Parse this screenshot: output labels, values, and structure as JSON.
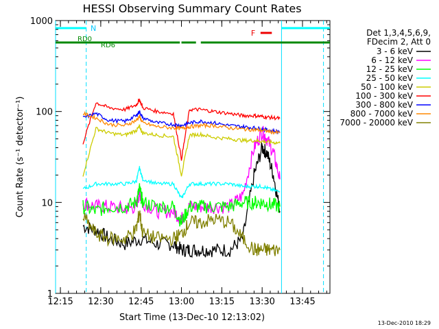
{
  "chart_data": {
    "type": "line",
    "title": "HESSI Observing Summary Count Rates",
    "xlabel": "Start Time (13-Dec-10 12:13:02)",
    "ylabel": "Count Rate (s⁻¹ detector⁻¹)",
    "y_scale": "log",
    "ylim": [
      1,
      1000
    ],
    "xlim_minutes": [
      12.22,
      13.92
    ],
    "x_ticks": [
      "12:15",
      "12:30",
      "12:45",
      "13:00",
      "13:15",
      "13:30",
      "13:45"
    ],
    "x_tick_values": [
      12.25,
      12.5,
      12.75,
      13.0,
      13.25,
      13.5,
      13.75
    ],
    "y_ticks": [
      "1",
      "10",
      "100",
      "1000"
    ],
    "y_tick_values": [
      1,
      10,
      100,
      1000
    ],
    "grid": false,
    "legend_placement": "right",
    "legend_header": [
      "Det 1,3,4,5,6,9,",
      "FDecim 2, Att 0"
    ],
    "series": [
      {
        "name": "3 - 6 keV",
        "color": "#000000",
        "points": [
          [
            12.39,
            5.5
          ],
          [
            12.47,
            5
          ],
          [
            12.55,
            4
          ],
          [
            12.65,
            3.5
          ],
          [
            12.75,
            4
          ],
          [
            12.85,
            3.5
          ],
          [
            12.95,
            3.5
          ],
          [
            13.0,
            3
          ],
          [
            13.05,
            3
          ],
          [
            13.12,
            3
          ],
          [
            13.2,
            3
          ],
          [
            13.3,
            3
          ],
          [
            13.38,
            4
          ],
          [
            13.45,
            20
          ],
          [
            13.5,
            40
          ],
          [
            13.53,
            35
          ],
          [
            13.57,
            20
          ],
          [
            13.61,
            8
          ]
        ]
      },
      {
        "name": "6 - 12 keV",
        "color": "#ff00ff",
        "points": [
          [
            12.39,
            10
          ],
          [
            12.47,
            9
          ],
          [
            12.55,
            9
          ],
          [
            12.65,
            8.5
          ],
          [
            12.72,
            9
          ],
          [
            12.74,
            13
          ],
          [
            12.76,
            10
          ],
          [
            12.85,
            8
          ],
          [
            12.95,
            8
          ],
          [
            13.0,
            6.5
          ],
          [
            13.05,
            9
          ],
          [
            13.12,
            9
          ],
          [
            13.2,
            9
          ],
          [
            13.3,
            9
          ],
          [
            13.38,
            12
          ],
          [
            13.45,
            40
          ],
          [
            13.5,
            60
          ],
          [
            13.53,
            50
          ],
          [
            13.57,
            35
          ],
          [
            13.61,
            18
          ]
        ]
      },
      {
        "name": "12 - 25 keV",
        "color": "#00ff00",
        "points": [
          [
            12.39,
            9
          ],
          [
            12.47,
            8
          ],
          [
            12.55,
            9
          ],
          [
            12.65,
            9
          ],
          [
            12.72,
            10
          ],
          [
            12.74,
            14
          ],
          [
            12.76,
            10
          ],
          [
            12.85,
            9
          ],
          [
            12.95,
            9
          ],
          [
            13.0,
            6
          ],
          [
            13.05,
            9
          ],
          [
            13.12,
            9
          ],
          [
            13.2,
            9
          ],
          [
            13.3,
            9
          ],
          [
            13.38,
            10
          ],
          [
            13.45,
            10
          ],
          [
            13.5,
            10
          ],
          [
            13.55,
            9.5
          ],
          [
            13.61,
            9
          ]
        ]
      },
      {
        "name": "25 - 50 keV",
        "color": "#00ffff",
        "points": [
          [
            12.39,
            14
          ],
          [
            12.47,
            16
          ],
          [
            12.55,
            16
          ],
          [
            12.65,
            16
          ],
          [
            12.72,
            17
          ],
          [
            12.74,
            24
          ],
          [
            12.76,
            18
          ],
          [
            12.85,
            16
          ],
          [
            12.95,
            16
          ],
          [
            13.0,
            11
          ],
          [
            13.05,
            16
          ],
          [
            13.12,
            16
          ],
          [
            13.2,
            16
          ],
          [
            13.3,
            16
          ],
          [
            13.38,
            15
          ],
          [
            13.45,
            15
          ],
          [
            13.5,
            15
          ],
          [
            13.55,
            14
          ],
          [
            13.61,
            13
          ]
        ]
      },
      {
        "name": "50 - 100 keV",
        "color": "#cccc00",
        "points": [
          [
            12.39,
            20
          ],
          [
            12.47,
            65
          ],
          [
            12.55,
            58
          ],
          [
            12.65,
            55
          ],
          [
            12.72,
            62
          ],
          [
            12.74,
            68
          ],
          [
            12.76,
            58
          ],
          [
            12.85,
            55
          ],
          [
            12.95,
            53
          ],
          [
            13.0,
            20
          ],
          [
            13.05,
            55
          ],
          [
            13.12,
            56
          ],
          [
            13.2,
            52
          ],
          [
            13.3,
            50
          ],
          [
            13.38,
            48
          ],
          [
            13.45,
            48
          ],
          [
            13.5,
            47
          ],
          [
            13.55,
            46
          ],
          [
            13.61,
            45
          ]
        ]
      },
      {
        "name": "100 - 300 keV",
        "color": "#ff0000",
        "points": [
          [
            12.39,
            45
          ],
          [
            12.47,
            125
          ],
          [
            12.55,
            110
          ],
          [
            12.65,
            105
          ],
          [
            12.72,
            118
          ],
          [
            12.74,
            135
          ],
          [
            12.76,
            110
          ],
          [
            12.85,
            100
          ],
          [
            12.95,
            95
          ],
          [
            13.0,
            30
          ],
          [
            13.05,
            105
          ],
          [
            13.12,
            105
          ],
          [
            13.2,
            100
          ],
          [
            13.3,
            95
          ],
          [
            13.38,
            90
          ],
          [
            13.45,
            90
          ],
          [
            13.5,
            88
          ],
          [
            13.55,
            86
          ],
          [
            13.61,
            84
          ]
        ]
      },
      {
        "name": "300 - 800 keV",
        "color": "#0000ff",
        "points": [
          [
            12.39,
            85
          ],
          [
            12.47,
            95
          ],
          [
            12.55,
            80
          ],
          [
            12.65,
            78
          ],
          [
            12.72,
            90
          ],
          [
            12.74,
            100
          ],
          [
            12.76,
            85
          ],
          [
            12.85,
            75
          ],
          [
            12.95,
            72
          ],
          [
            13.0,
            70
          ],
          [
            13.05,
            75
          ],
          [
            13.12,
            78
          ],
          [
            13.2,
            75
          ],
          [
            13.3,
            70
          ],
          [
            13.38,
            68
          ],
          [
            13.45,
            66
          ],
          [
            13.5,
            64
          ],
          [
            13.55,
            62
          ],
          [
            13.61,
            60
          ]
        ]
      },
      {
        "name": "800 - 7000 keV",
        "color": "#ff8800",
        "points": [
          [
            12.39,
            95
          ],
          [
            12.47,
            85
          ],
          [
            12.55,
            72
          ],
          [
            12.65,
            70
          ],
          [
            12.72,
            80
          ],
          [
            12.74,
            88
          ],
          [
            12.76,
            75
          ],
          [
            12.85,
            68
          ],
          [
            12.95,
            66
          ],
          [
            13.0,
            65
          ],
          [
            13.05,
            68
          ],
          [
            13.12,
            70
          ],
          [
            13.2,
            70
          ],
          [
            13.3,
            66
          ],
          [
            13.38,
            64
          ],
          [
            13.45,
            63
          ],
          [
            13.5,
            62
          ],
          [
            13.55,
            60
          ],
          [
            13.61,
            58
          ]
        ]
      },
      {
        "name": "7000 - 20000 keV",
        "color": "#808000",
        "points": [
          [
            12.39,
            7
          ],
          [
            12.47,
            4.5
          ],
          [
            12.55,
            4
          ],
          [
            12.65,
            4
          ],
          [
            12.72,
            5
          ],
          [
            12.74,
            8
          ],
          [
            12.76,
            4.5
          ],
          [
            12.85,
            4
          ],
          [
            12.95,
            4
          ],
          [
            13.0,
            4.5
          ],
          [
            13.05,
            6
          ],
          [
            13.12,
            6
          ],
          [
            13.2,
            6.5
          ],
          [
            13.3,
            6
          ],
          [
            13.38,
            4
          ],
          [
            13.45,
            3
          ],
          [
            13.5,
            3
          ],
          [
            13.55,
            3
          ],
          [
            13.61,
            3
          ]
        ]
      }
    ],
    "annotations": {
      "n_label": "N",
      "rd0_label": "RD0",
      "rd6_label": "RD6",
      "f_label": "F",
      "night_segments": [
        [
          12.22,
          12.41
        ],
        [
          13.62,
          13.92
        ]
      ],
      "attenuator_segments": [
        [
          12.22,
          12.52
        ],
        [
          12.52,
          12.99
        ],
        [
          13.0,
          13.09
        ],
        [
          13.12,
          13.92
        ]
      ],
      "flare_segment": [
        13.49,
        13.56
      ],
      "cyan_vlines": [
        12.22,
        12.41,
        13.62,
        13.88
      ]
    },
    "timestamp": "13-Dec-2010 18:29"
  }
}
